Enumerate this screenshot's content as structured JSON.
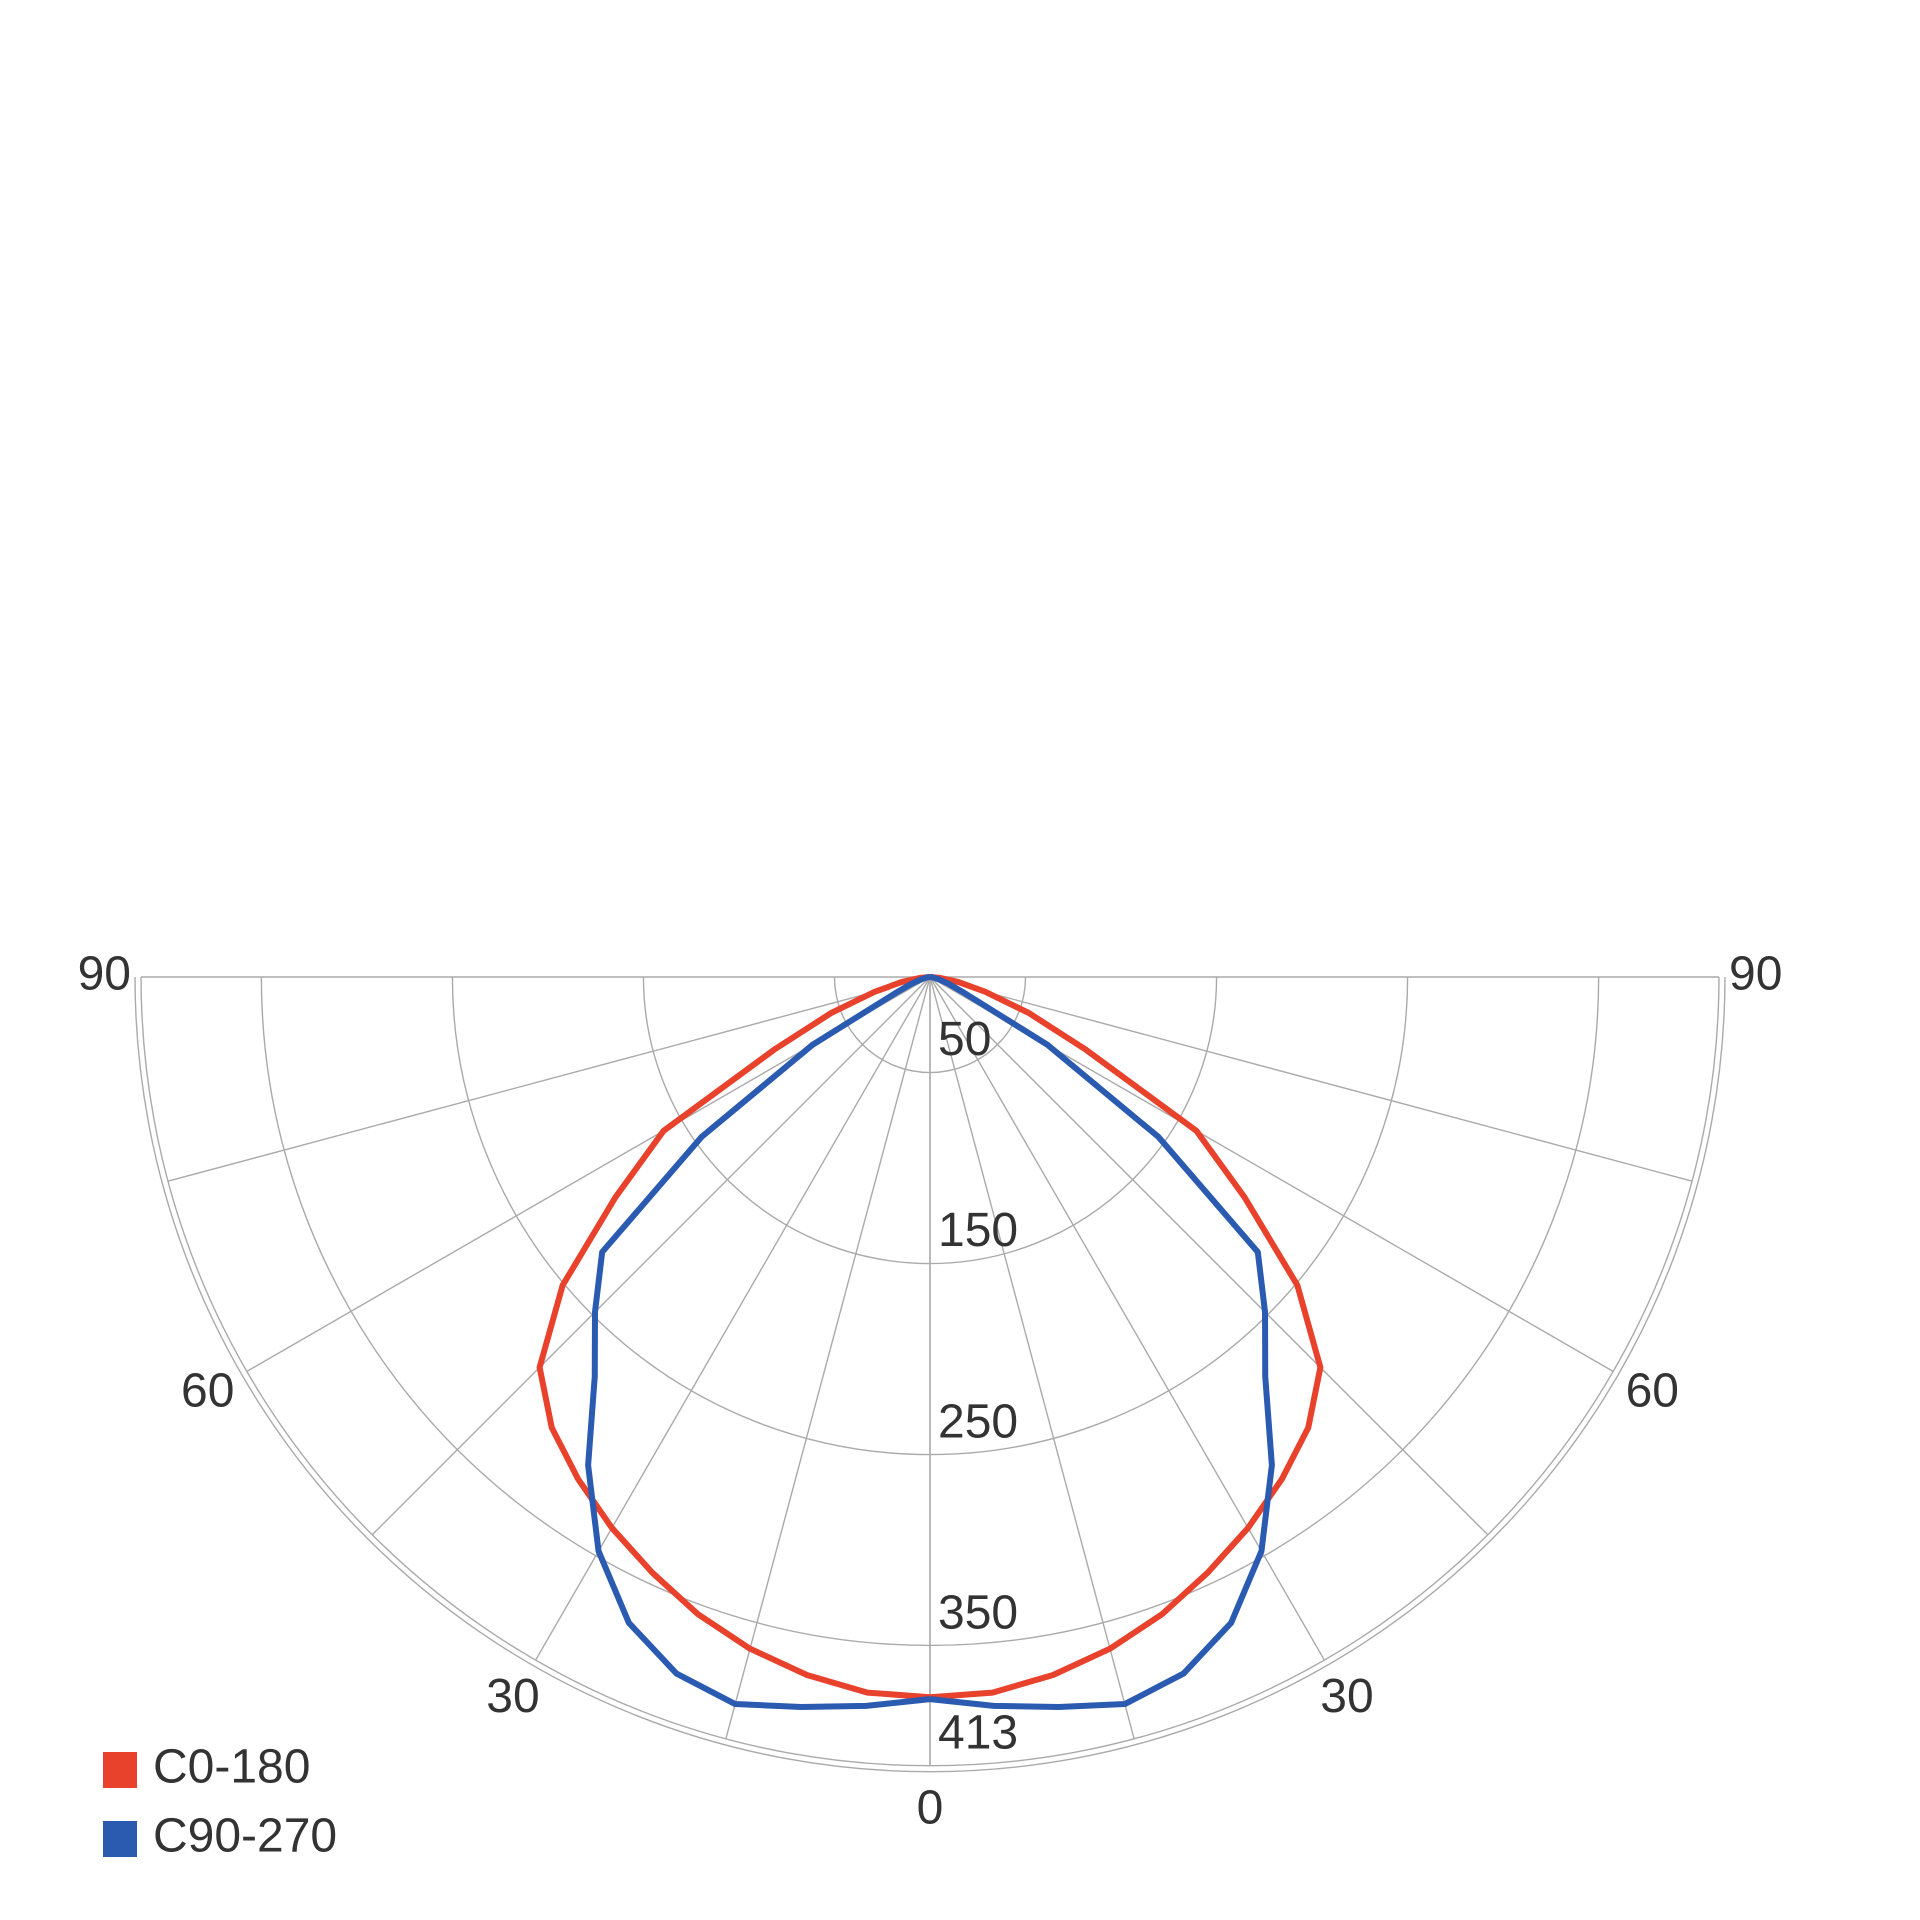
{
  "chart_data": {
    "type": "polar",
    "angles": [
      0,
      5,
      10,
      15,
      20,
      25,
      30,
      35,
      40,
      45,
      50,
      55,
      60,
      65,
      70,
      75,
      80,
      85,
      90
    ],
    "series": [
      {
        "name": "C0-180",
        "color": "#e8412c",
        "values": [
          377,
          376,
          371,
          364,
          355,
          344,
          333,
          321,
          308,
          289,
          251,
          201,
          161,
          90,
          55,
          30,
          15,
          5,
          0
        ]
      },
      {
        "name": "C90-270",
        "color": "#2a5bb0",
        "values": [
          378,
          383,
          388,
          394,
          388,
          373,
          347,
          312,
          273,
          248,
          224,
          146,
          71,
          20,
          10,
          5,
          2,
          1,
          0
        ]
      }
    ],
    "rlim": [
      0,
      413
    ],
    "rticks": [
      50,
      150,
      250,
      350,
      413
    ],
    "angle_grid": [
      0,
      15,
      30,
      45,
      60,
      75,
      90
    ],
    "angle_ticks": [
      0,
      30,
      60,
      90
    ],
    "grid": true,
    "legend": "bottom-left"
  }
}
